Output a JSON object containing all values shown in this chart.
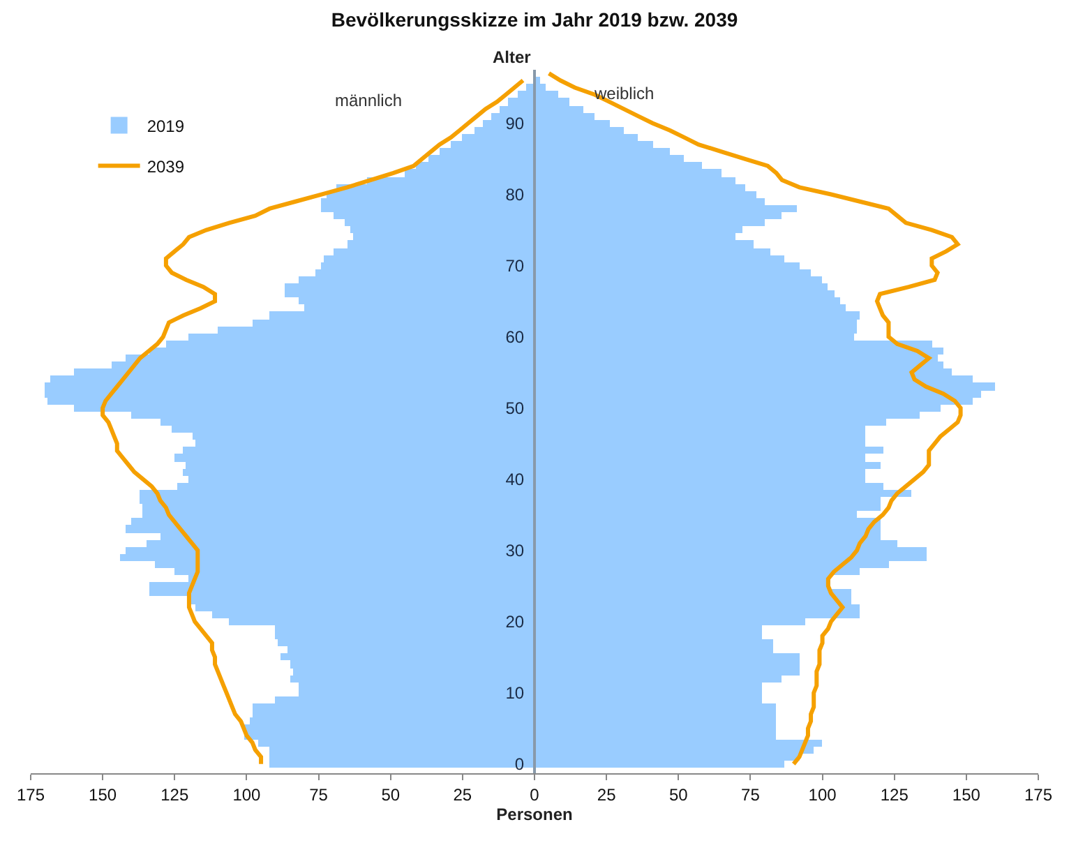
{
  "chart_data": {
    "type": "bar",
    "orientation": "horizontal",
    "title": "Bevölkerungsskizze im Jahr 2019 bzw. 2039",
    "xlabel": "Personen",
    "ylabel": "Alter",
    "annotations": [
      "männlich",
      "weiblich"
    ],
    "categories": [
      null,
      null,
      null,
      null,
      null,
      null,
      null,
      "90",
      null,
      null,
      null,
      null,
      null,
      null,
      null,
      null,
      null,
      "80",
      null,
      null,
      null,
      null,
      null,
      null,
      null,
      null,
      null,
      "70",
      null,
      null,
      null,
      null,
      null,
      null,
      null,
      null,
      null,
      "60",
      null,
      null,
      null,
      null,
      null,
      null,
      null,
      null,
      null,
      "50",
      null,
      null,
      null,
      null,
      null,
      null,
      null,
      null,
      null,
      "40",
      null,
      null,
      null,
      null,
      null,
      null,
      null,
      null,
      null,
      "30",
      null,
      null,
      null,
      null,
      null,
      null,
      null,
      null,
      null,
      "20",
      null,
      null,
      null,
      null,
      null,
      null,
      null,
      null,
      null,
      "10",
      null,
      null,
      null,
      null,
      null,
      null,
      null,
      null,
      null,
      "0"
    ],
    "series": [
      {
        "name": "2019",
        "color": "#99ccff",
        "values": [
          null,
          null,
          -3,
          -6,
          -9,
          -12,
          -15,
          -18,
          -21,
          -25,
          -29,
          -33,
          -37,
          -41,
          -45,
          -58,
          -69,
          -72,
          -74,
          -74,
          -70,
          -66,
          -64,
          -63,
          -65,
          -70,
          -73,
          -74,
          -76,
          -82,
          -87,
          -87,
          -82,
          -80,
          -92,
          -98,
          -110,
          -120,
          -128,
          -134,
          -142,
          -147,
          -160,
          -168,
          -170,
          -170,
          -169,
          -160,
          -140,
          -130,
          -126,
          -119,
          -118,
          -122,
          -125,
          -121,
          -122,
          -120,
          -124,
          -137,
          -137,
          -136,
          -136,
          -140,
          -142,
          -130,
          -135,
          -142,
          -144,
          -132,
          -125,
          -120,
          -134,
          -134,
          -120,
          -118,
          -112,
          -106,
          -90,
          -90,
          -89,
          -86,
          -88,
          -85,
          -84,
          -85,
          -82,
          -82,
          -90,
          -98,
          -98,
          -99,
          -101,
          -101,
          -96,
          -92,
          -92,
          -92
        ]
      },
      {
        "color": "#99ccff",
        "values": [
          null,
          2,
          4,
          8,
          12,
          17,
          21,
          26,
          31,
          36,
          41,
          47,
          52,
          58,
          65,
          70,
          73,
          77,
          80,
          91,
          86,
          80,
          72,
          70,
          76,
          82,
          87,
          92,
          96,
          100,
          102,
          104,
          106,
          108,
          113,
          112,
          112,
          111,
          138,
          142,
          140,
          142,
          145,
          152,
          160,
          155,
          152,
          141,
          134,
          122,
          115,
          115,
          115,
          121,
          115,
          120,
          115,
          115,
          121,
          131,
          120,
          120,
          112,
          120,
          120,
          120,
          126,
          136,
          136,
          123,
          113,
          103,
          103,
          110,
          110,
          113,
          113,
          94,
          79,
          79,
          83,
          83,
          92,
          92,
          92,
          86,
          79,
          79,
          79,
          84,
          84,
          84,
          84,
          84,
          100,
          97,
          92,
          87
        ]
      },
      {
        "name": "2039",
        "type": "line",
        "color": "#f5a000",
        "values": [
          null,
          -4,
          -7,
          -10,
          -13,
          -17,
          -20,
          -23,
          -26,
          -29,
          -33,
          -36,
          -39,
          -42,
          -49,
          -57,
          -65,
          -74,
          -83,
          -92,
          -97,
          -106,
          -114,
          -120,
          -122,
          -125,
          -128,
          -128,
          -126,
          -121,
          -115,
          -111,
          -111,
          -116,
          -122,
          -127,
          -128,
          -129,
          -131,
          -134,
          -137,
          -139,
          -141,
          -143,
          -145,
          -147,
          -149,
          -150,
          -150,
          -148,
          -147,
          -146,
          -145,
          -145,
          -143,
          -141,
          -139,
          -136,
          -133,
          -131,
          -130,
          -128,
          -127,
          -125,
          -123,
          -121,
          -119,
          -117,
          -117,
          -117,
          -117,
          -118,
          -119,
          -120,
          -120,
          -120,
          -119,
          -118,
          -116,
          -114,
          -112,
          -112,
          -111,
          -111,
          -110,
          -109,
          -108,
          -107,
          -106,
          -105,
          -104,
          -102,
          -101,
          -100,
          -98,
          -97,
          -95,
          -95
        ]
      },
      {
        "type": "line",
        "color": "#f5a000",
        "values": [
          5,
          9,
          14,
          21,
          26,
          31,
          36,
          41,
          47,
          52,
          57,
          65,
          73,
          81,
          84,
          86,
          92,
          103,
          113,
          123,
          126,
          129,
          138,
          145,
          147,
          143,
          138,
          138,
          140,
          139,
          130,
          120,
          119,
          120,
          121,
          123,
          123,
          123,
          126,
          133,
          137,
          134,
          131,
          132,
          136,
          142,
          146,
          148,
          148,
          147,
          144,
          141,
          139,
          137,
          137,
          137,
          135,
          132,
          129,
          126,
          124,
          123,
          121,
          118,
          116,
          115,
          113,
          112,
          110,
          107,
          104,
          102,
          102,
          103,
          105,
          107,
          105,
          103,
          102,
          100,
          100,
          99,
          99,
          99,
          98,
          98,
          98,
          97,
          97,
          97,
          96,
          96,
          95,
          95,
          94,
          93,
          92,
          90
        ]
      }
    ],
    "xlim": [
      -175,
      175
    ],
    "xticks": [
      {
        "value": -175,
        "label": "175"
      },
      {
        "value": -150,
        "label": "150"
      },
      {
        "value": -125,
        "label": "125"
      },
      {
        "value": -100,
        "label": "100"
      },
      {
        "value": -75,
        "label": "75"
      },
      {
        "value": -50,
        "label": "50"
      },
      {
        "value": -25,
        "label": "25"
      },
      0,
      25,
      50,
      75,
      100,
      125,
      150,
      175
    ],
    "legend": "top left",
    "stacked": true
  }
}
